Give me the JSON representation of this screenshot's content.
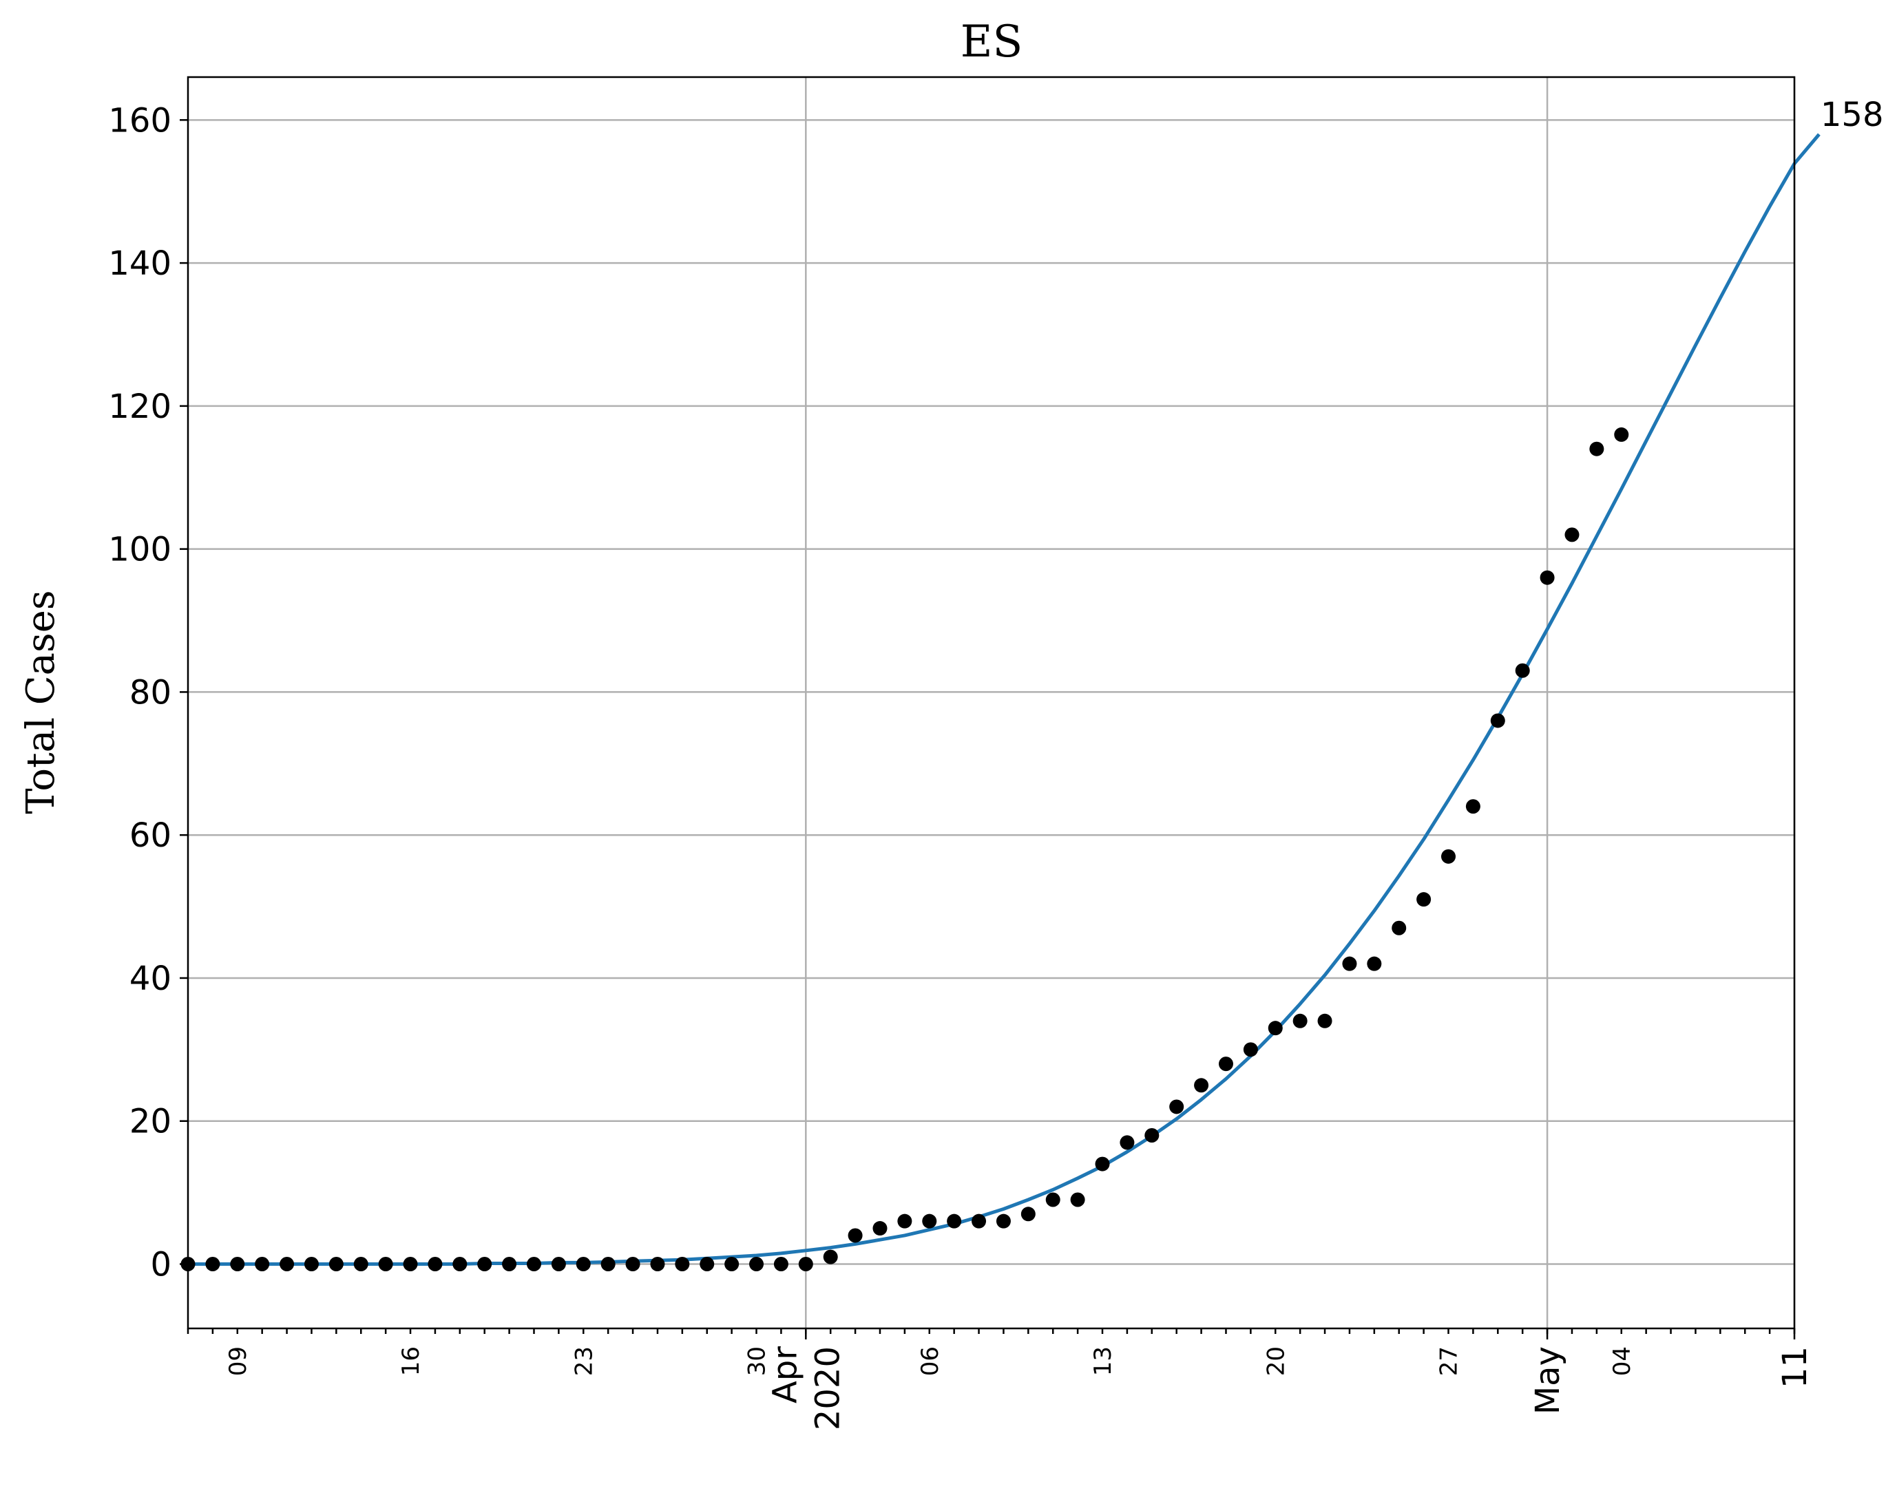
{
  "chart_data": {
    "type": "scatter",
    "title": "ES",
    "ylabel": "Total Cases",
    "xlabel": "",
    "ylim": [
      -9,
      166
    ],
    "ylim_note": "",
    "yticks": [
      0,
      20,
      40,
      60,
      80,
      100,
      120,
      140,
      160
    ],
    "x_range": [
      "2020-03-07",
      "2020-05-11"
    ],
    "grid": true,
    "legend": "none",
    "colors": {
      "points": "#000000",
      "fit": "#1f77b4"
    },
    "x_major_ticks": [
      {
        "date": "2020-04-01",
        "label": "Apr\n2020"
      },
      {
        "date": "2020-05-01",
        "label": "May"
      },
      {
        "date": "2020-05-11",
        "label": "11"
      }
    ],
    "x_minor_ticks": [
      {
        "date": "2020-03-09",
        "label": "09"
      },
      {
        "date": "2020-03-16",
        "label": "16"
      },
      {
        "date": "2020-03-23",
        "label": "23"
      },
      {
        "date": "2020-03-30",
        "label": "30"
      },
      {
        "date": "2020-04-06",
        "label": "06"
      },
      {
        "date": "2020-04-13",
        "label": "13"
      },
      {
        "date": "2020-04-20",
        "label": "20"
      },
      {
        "date": "2020-04-27",
        "label": "27"
      },
      {
        "date": "2020-05-04",
        "label": "04"
      }
    ],
    "observed": {
      "start_date": "2020-03-07",
      "values": [
        0,
        0,
        0,
        0,
        0,
        0,
        0,
        0,
        0,
        0,
        0,
        0,
        0,
        0,
        0,
        0,
        0,
        0,
        0,
        0,
        0,
        0,
        0,
        0,
        0,
        0,
        1,
        4,
        5,
        6,
        6,
        6,
        6,
        6,
        7,
        9,
        9,
        14,
        17,
        18,
        22,
        25,
        28,
        30,
        33,
        34,
        34,
        42,
        42,
        47,
        51,
        57,
        64,
        76,
        83,
        96,
        102,
        114,
        116
      ]
    },
    "fit": {
      "start_date": "2020-03-07",
      "values": [
        0.0,
        0.0,
        0.0,
        0.0,
        0.0,
        0.0,
        0.0,
        0.0,
        0.0,
        0.0,
        0.0,
        0.0,
        0.1,
        0.1,
        0.1,
        0.2,
        0.2,
        0.3,
        0.4,
        0.5,
        0.6,
        0.8,
        1.0,
        1.2,
        1.5,
        1.9,
        2.3,
        2.8,
        3.4,
        4.0,
        4.8,
        5.6,
        6.6,
        7.7,
        9.0,
        10.4,
        12.0,
        13.7,
        15.7,
        17.9,
        20.3,
        23.0,
        25.9,
        29.1,
        32.6,
        36.4,
        40.4,
        44.8,
        49.4,
        54.3,
        59.4,
        64.9,
        70.5,
        76.4,
        82.5,
        88.8,
        95.2,
        101.8,
        108.4,
        115.1,
        121.8,
        128.5,
        135.1,
        141.6,
        147.9,
        153.9,
        158.0
      ]
    },
    "end_label": "158"
  }
}
